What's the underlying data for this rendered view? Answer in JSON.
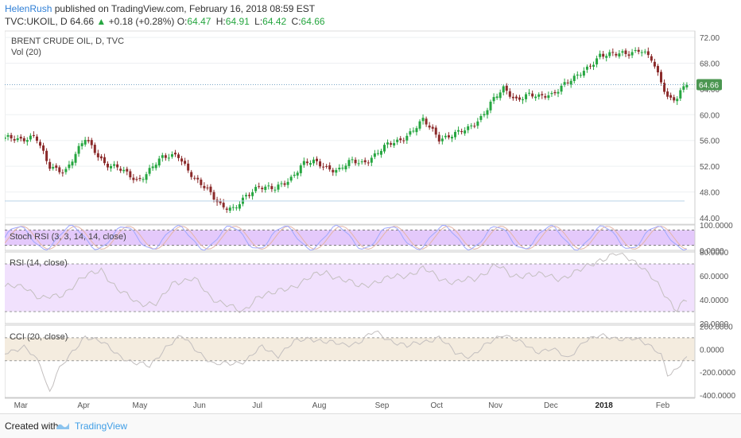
{
  "header": {
    "author": "HelenRush",
    "published": "published on TradingView.com, February 16, 2018 08:59 EST"
  },
  "ticker": {
    "symbol": "TVC:UKOIL, D",
    "last": "64.66",
    "arrow": "▲",
    "change": "+0.18 (+0.28%)",
    "o_label": "O:",
    "o_value": "64.47",
    "h_label": "H:",
    "h_value": "64.91",
    "l_label": "L:",
    "l_value": "64.42",
    "c_label": "C:",
    "c_value": "64.66"
  },
  "chart_data": {
    "type": "candlestick",
    "title": "BRENT CRUDE OIL, D, TVC",
    "volume_label": "Vol (20)",
    "last_price_badge": "64.66",
    "price_axis": {
      "ylim": [
        43,
        73
      ],
      "ticks": [
        "72.00",
        "68.00",
        "64.00",
        "60.00",
        "56.00",
        "52.00",
        "48.00",
        "44.00"
      ],
      "tick_values": [
        72,
        68,
        64,
        60,
        56,
        52,
        48,
        44
      ]
    },
    "x_axis": {
      "labels": [
        "Mar",
        "Apr",
        "May",
        "Jun",
        "Jul",
        "Aug",
        "Sep",
        "Oct",
        "Nov",
        "Dec",
        "2018",
        "Feb"
      ],
      "label_positions_days": [
        20,
        98,
        168,
        242,
        314,
        391,
        469,
        537,
        610,
        679,
        745,
        818
      ]
    },
    "price_anchors_days": [
      0,
      20,
      38,
      55,
      75,
      100,
      125,
      140,
      165,
      175,
      195,
      215,
      235,
      255,
      270,
      285,
      300,
      315,
      335,
      355,
      370,
      385,
      400,
      415,
      430,
      445,
      460,
      475,
      490,
      505,
      520,
      540,
      560,
      575,
      590,
      605,
      620,
      635,
      650,
      665,
      680,
      695,
      710,
      725,
      740,
      760,
      775,
      790,
      805,
      810,
      825,
      835,
      843,
      850
    ],
    "price_anchors_values": [
      56.3,
      56.2,
      56.8,
      51.8,
      51.3,
      56.2,
      52.4,
      51.7,
      49.8,
      50.8,
      53.2,
      54.0,
      49.9,
      48.1,
      45.8,
      45.1,
      47.4,
      49.0,
      48.3,
      50.1,
      52.4,
      52.6,
      51.8,
      51.4,
      52.7,
      52.5,
      53.8,
      55.2,
      55.9,
      57.4,
      59.1,
      56.3,
      57.1,
      57.6,
      59.3,
      62.1,
      63.9,
      62.3,
      63.3,
      62.6,
      63.1,
      64.9,
      65.7,
      67.2,
      69.4,
      69.3,
      69.5,
      70.3,
      68.4,
      66.6,
      62.5,
      62.7,
      64.2,
      64.66
    ],
    "stoch_rsi": {
      "label": "Stoch RSI (3, 3, 14, 14, close)",
      "ticks": [
        "100.0000",
        "0.0000"
      ],
      "ylim": [
        0,
        100
      ],
      "band": [
        20,
        80
      ]
    },
    "rsi": {
      "label": "RSI (14, close)",
      "ticks": [
        "80.0000",
        "60.0000",
        "40.0000",
        "20.0000"
      ],
      "ylim": [
        20,
        80
      ],
      "band": [
        30,
        70
      ],
      "anchors_days": [
        0,
        25,
        45,
        70,
        95,
        120,
        140,
        165,
        190,
        210,
        235,
        255,
        275,
        295,
        315,
        335,
        360,
        385,
        400,
        420,
        440,
        460,
        480,
        500,
        520,
        540,
        560,
        585,
        610,
        630,
        650,
        670,
        690,
        715,
        740,
        760,
        775,
        790,
        805,
        820,
        835,
        843,
        850
      ],
      "anchors_values": [
        50,
        52,
        40,
        44,
        57,
        66,
        48,
        38,
        36,
        55,
        58,
        42,
        37,
        28,
        44,
        45,
        52,
        60,
        63,
        57,
        51,
        55,
        58,
        61,
        66,
        58,
        55,
        57,
        70,
        59,
        62,
        60,
        58,
        64,
        74,
        78,
        75,
        70,
        58,
        44,
        32,
        39,
        41
      ]
    },
    "cci": {
      "label": "CCI (20, close)",
      "ticks": [
        "200.0000",
        "0.0000",
        "-200.0000",
        "-400.0000"
      ],
      "ylim": [
        -420,
        210
      ],
      "band": [
        -100,
        100
      ],
      "anchors_days": [
        0,
        25,
        45,
        55,
        65,
        80,
        100,
        120,
        140,
        160,
        180,
        200,
        220,
        240,
        260,
        280,
        300,
        320,
        340,
        360,
        380,
        400,
        420,
        440,
        460,
        480,
        500,
        520,
        540,
        560,
        580,
        600,
        620,
        640,
        660,
        680,
        700,
        720,
        740,
        760,
        780,
        800,
        815,
        825,
        835,
        845,
        850
      ],
      "anchors_values": [
        -20,
        10,
        -130,
        -380,
        -200,
        -70,
        120,
        60,
        -40,
        -120,
        -150,
        20,
        110,
        -10,
        -140,
        -120,
        -100,
        20,
        -50,
        60,
        100,
        60,
        40,
        60,
        150,
        80,
        20,
        70,
        100,
        -30,
        -60,
        40,
        140,
        60,
        -20,
        10,
        -90,
        80,
        110,
        100,
        90,
        40,
        -20,
        -240,
        -190,
        -90,
        -70
      ]
    }
  },
  "footer": {
    "created": "Created with",
    "brand": "TradingView"
  },
  "colors": {
    "up": "#26a640",
    "down": "#8b2a2a",
    "stoch_band": "#e4c9fb",
    "rsi_band": "#f1e1fd",
    "cci_band": "#f4ecdf",
    "line": "#c3bfbf",
    "badge": "#4b9651"
  }
}
